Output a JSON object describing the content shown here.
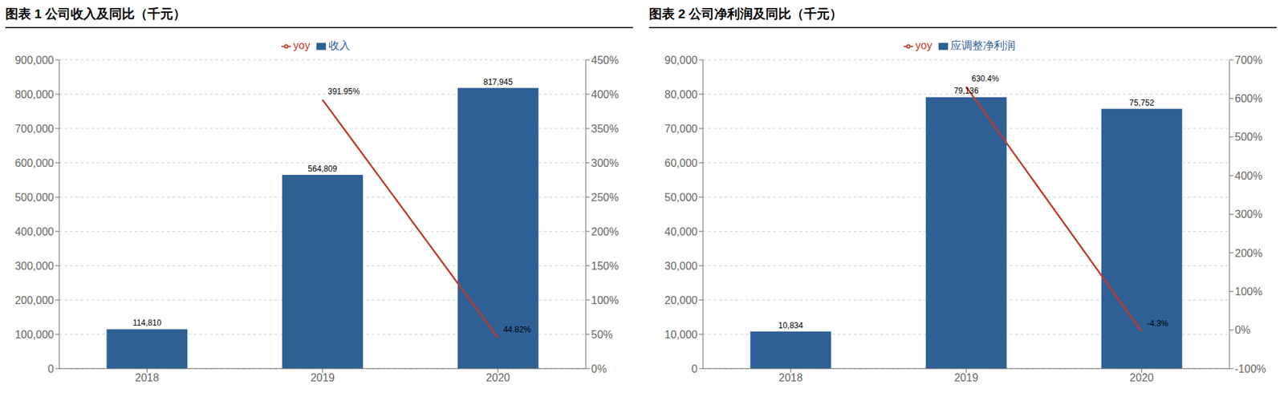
{
  "chart_data": [
    {
      "type": "bar",
      "title": "图表 1   公司收入及同比（千元）",
      "categories": [
        "2018",
        "2019",
        "2020"
      ],
      "series": [
        {
          "name": "收入",
          "type": "bar",
          "color": "#2E6096",
          "values": [
            114810,
            564809,
            817945
          ],
          "value_labels": [
            "114,810",
            "564,809",
            "817,945"
          ]
        },
        {
          "name": "yoy",
          "type": "line",
          "axis": "y2",
          "color": "#C0392B",
          "values": [
            null,
            3.9195,
            0.4482
          ],
          "value_labels": [
            null,
            "391.95%",
            "44.82%"
          ]
        }
      ],
      "ylim": [
        0,
        900000
      ],
      "yticks": [
        0,
        {
          "value": 100000,
          "label": "100,000"
        },
        {
          "value": 200000,
          "label": "200,000"
        },
        {
          "value": 300000,
          "label": "300,000"
        },
        {
          "value": 400000,
          "label": "400,000"
        },
        {
          "value": 500000,
          "label": "500,000"
        },
        {
          "value": 600000,
          "label": "600,000"
        },
        {
          "value": 700000,
          "label": "700,000"
        },
        {
          "value": 800000,
          "label": "800,000"
        },
        {
          "value": 900000,
          "label": "900,000"
        }
      ],
      "y2lim": [
        0.0,
        4.5
      ],
      "y2ticks": [
        {
          "value": 0.0,
          "label": "0%"
        },
        {
          "value": 0.5,
          "label": "50%"
        },
        {
          "value": 1.0,
          "label": "100%"
        },
        {
          "value": 1.5,
          "label": "150%"
        },
        {
          "value": 2.0,
          "label": "200%"
        },
        {
          "value": 2.5,
          "label": "250%"
        },
        {
          "value": 3.0,
          "label": "300%"
        },
        {
          "value": 3.5,
          "label": "350%"
        },
        {
          "value": 4.0,
          "label": "400%"
        },
        {
          "value": 4.5,
          "label": "450%"
        }
      ],
      "grid": true,
      "legend": "top",
      "data_labels": true
    },
    {
      "type": "bar",
      "title": "图表 2   公司净利润及同比（千元）",
      "categories": [
        "2018",
        "2019",
        "2020"
      ],
      "series": [
        {
          "name": "应调整净利润",
          "type": "bar",
          "color": "#2E6096",
          "values": [
            10834,
            79136,
            75752
          ],
          "value_labels": [
            "10,834",
            "79,136",
            "75,752"
          ]
        },
        {
          "name": "yoy",
          "type": "line",
          "axis": "y2",
          "color": "#C0392B",
          "values": [
            null,
            6.304,
            -0.043
          ],
          "value_labels": [
            null,
            "630.4%",
            "-4.3%"
          ]
        }
      ],
      "ylim": [
        0,
        90000
      ],
      "yticks": [
        0,
        {
          "value": 10000,
          "label": "10,000"
        },
        {
          "value": 20000,
          "label": "20,000"
        },
        {
          "value": 30000,
          "label": "30,000"
        },
        {
          "value": 40000,
          "label": "40,000"
        },
        {
          "value": 50000,
          "label": "50,000"
        },
        {
          "value": 60000,
          "label": "60,000"
        },
        {
          "value": 70000,
          "label": "70,000"
        },
        {
          "value": 80000,
          "label": "80,000"
        },
        {
          "value": 90000,
          "label": "90,000"
        }
      ],
      "y2lim": [
        -1.0,
        7.0
      ],
      "y2ticks": [
        {
          "value": -1.0,
          "label": "-100%"
        },
        {
          "value": 0.0,
          "label": "0%"
        },
        {
          "value": 1.0,
          "label": "100%"
        },
        {
          "value": 2.0,
          "label": "200%"
        },
        {
          "value": 3.0,
          "label": "300%"
        },
        {
          "value": 4.0,
          "label": "400%"
        },
        {
          "value": 5.0,
          "label": "500%"
        },
        {
          "value": 6.0,
          "label": "600%"
        },
        {
          "value": 7.0,
          "label": "700%"
        }
      ],
      "grid": true,
      "legend": "top",
      "data_labels": true
    }
  ]
}
